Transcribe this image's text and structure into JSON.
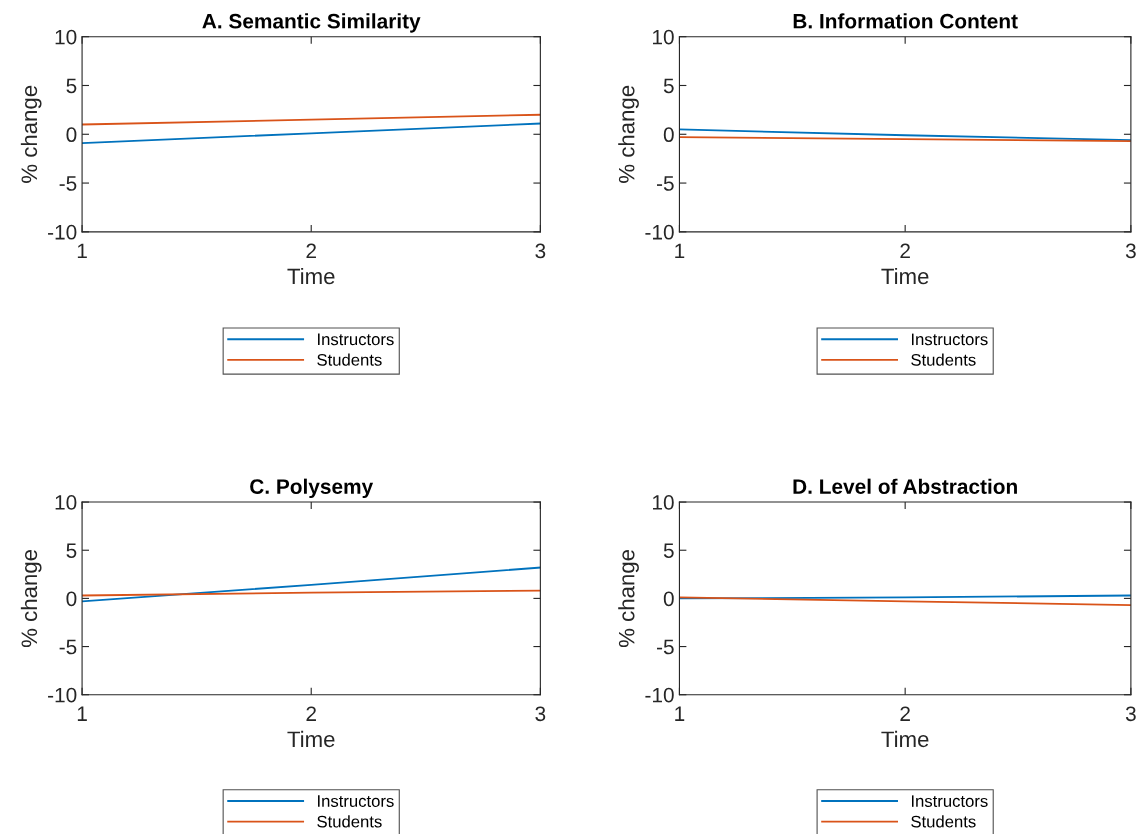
{
  "chart_data": [
    {
      "type": "line",
      "title": "A. Semantic Similarity",
      "xlabel": "Time",
      "ylabel": "% change",
      "x": [
        1,
        2,
        3
      ],
      "xlim": [
        1,
        3
      ],
      "xticks": [
        1,
        2,
        3
      ],
      "ylim": [
        -10,
        10
      ],
      "yticks": [
        -10,
        -5,
        0,
        5,
        10
      ],
      "legend": "bottom",
      "series": [
        {
          "name": "Instructors",
          "color": "#0072bd",
          "values": [
            -0.9,
            0.1,
            1.1
          ]
        },
        {
          "name": "Students",
          "color": "#d95319",
          "values": [
            1.0,
            1.5,
            2.0
          ]
        }
      ]
    },
    {
      "type": "line",
      "title": "B. Information Content",
      "xlabel": "Time",
      "ylabel": "% change",
      "x": [
        1,
        2,
        3
      ],
      "xlim": [
        1,
        3
      ],
      "xticks": [
        1,
        2,
        3
      ],
      "ylim": [
        -10,
        10
      ],
      "yticks": [
        -10,
        -5,
        0,
        5,
        10
      ],
      "legend": "bottom",
      "series": [
        {
          "name": "Instructors",
          "color": "#0072bd",
          "values": [
            0.5,
            -0.1,
            -0.6
          ]
        },
        {
          "name": "Students",
          "color": "#d95319",
          "values": [
            -0.3,
            -0.5,
            -0.7
          ]
        }
      ]
    },
    {
      "type": "line",
      "title": "C. Polysemy",
      "xlabel": "Time",
      "ylabel": "% change",
      "x": [
        1,
        2,
        3
      ],
      "xlim": [
        1,
        3
      ],
      "xticks": [
        1,
        2,
        3
      ],
      "ylim": [
        -10,
        10
      ],
      "yticks": [
        -10,
        -5,
        0,
        5,
        10
      ],
      "legend": "bottom",
      "series": [
        {
          "name": "Instructors",
          "color": "#0072bd",
          "values": [
            -0.3,
            1.4,
            3.2
          ]
        },
        {
          "name": "Students",
          "color": "#d95319",
          "values": [
            0.3,
            0.6,
            0.8
          ]
        }
      ]
    },
    {
      "type": "line",
      "title": "D. Level of Abstraction",
      "xlabel": "Time",
      "ylabel": "% change",
      "x": [
        1,
        2,
        3
      ],
      "xlim": [
        1,
        3
      ],
      "xticks": [
        1,
        2,
        3
      ],
      "ylim": [
        -10,
        10
      ],
      "yticks": [
        -10,
        -5,
        0,
        5,
        10
      ],
      "legend": "bottom",
      "series": [
        {
          "name": "Instructors",
          "color": "#0072bd",
          "values": [
            0.0,
            0.1,
            0.3
          ]
        },
        {
          "name": "Students",
          "color": "#d95319",
          "values": [
            0.1,
            -0.3,
            -0.7
          ]
        }
      ]
    }
  ]
}
